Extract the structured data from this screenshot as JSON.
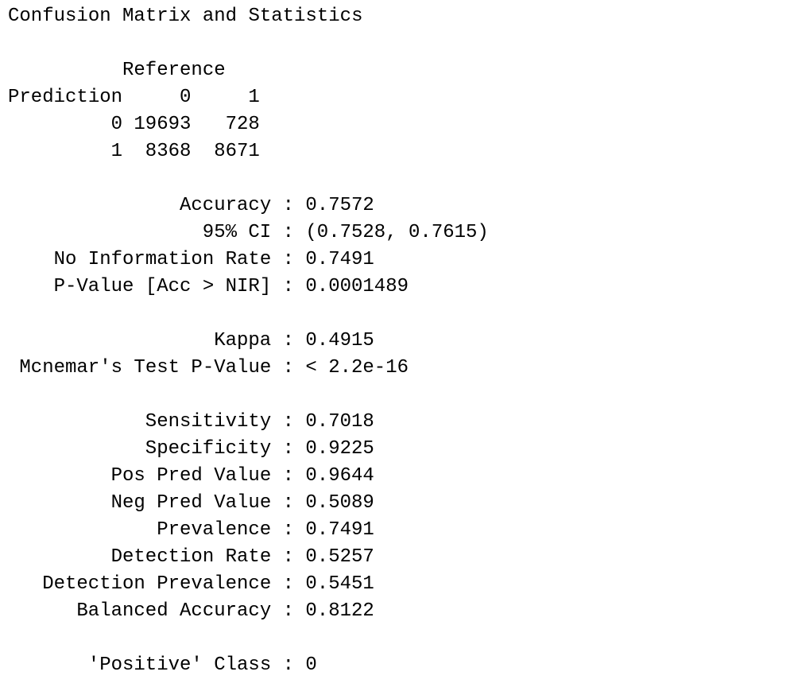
{
  "title": "Confusion Matrix and Statistics",
  "matrix": {
    "reference_label": "Reference",
    "prediction_label": "Prediction",
    "columns": [
      "0",
      "1"
    ],
    "rows": [
      {
        "label": "0",
        "values": [
          "19693",
          "728"
        ]
      },
      {
        "label": "1",
        "values": [
          "8368",
          "8671"
        ]
      }
    ]
  },
  "separator": ":",
  "stat_groups": [
    [
      {
        "label": "Accuracy",
        "value": "0.7572"
      },
      {
        "label": "95% CI",
        "value": "(0.7528, 0.7615)"
      },
      {
        "label": "No Information Rate",
        "value": "0.7491"
      },
      {
        "label": "P-Value [Acc > NIR]",
        "value": "0.0001489"
      }
    ],
    [
      {
        "label": "Kappa",
        "value": "0.4915"
      },
      {
        "label": "Mcnemar's Test P-Value",
        "value": "< 2.2e-16"
      }
    ],
    [
      {
        "label": "Sensitivity",
        "value": "0.7018"
      },
      {
        "label": "Specificity",
        "value": "0.9225"
      },
      {
        "label": "Pos Pred Value",
        "value": "0.9644"
      },
      {
        "label": "Neg Pred Value",
        "value": "0.5089"
      },
      {
        "label": "Prevalence",
        "value": "0.7491"
      },
      {
        "label": "Detection Rate",
        "value": "0.5257"
      },
      {
        "label": "Detection Prevalence",
        "value": "0.5451"
      },
      {
        "label": "Balanced Accuracy",
        "value": "0.8122"
      }
    ],
    [
      {
        "label": "'Positive' Class",
        "value": "0"
      }
    ]
  ]
}
